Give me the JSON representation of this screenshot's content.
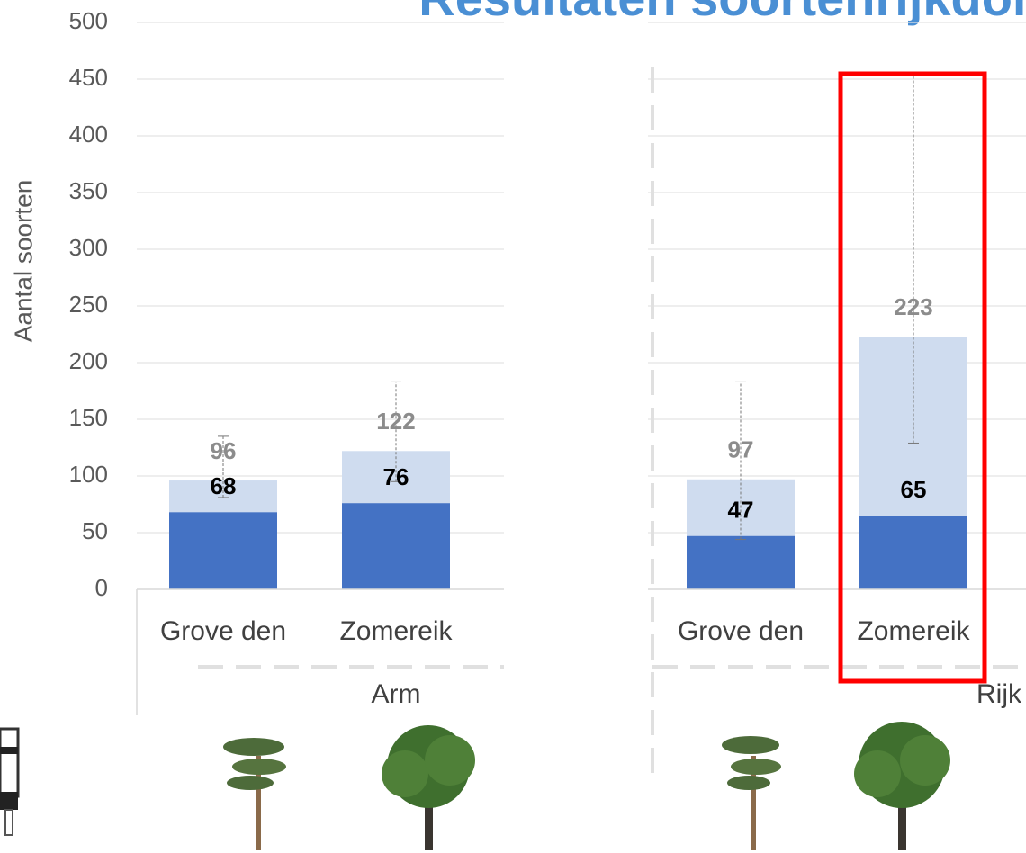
{
  "chart_data": {
    "type": "bar",
    "barmode": "overlay",
    "title": "Resultaten soortenrijkdom",
    "ylabel": "Aantal soorten",
    "categories": [
      "Grove den",
      "Zomereik",
      "Grove den",
      "Zomereik"
    ],
    "groups": [
      "Arm",
      "Rijk"
    ],
    "series": [
      {
        "color": "#cfdcef",
        "label_color": "#8c8c8c",
        "values": [
          96,
          122,
          97,
          223
        ]
      },
      {
        "color": "#4472c4",
        "label_color": "#000000",
        "values": [
          68,
          76,
          47,
          65
        ]
      }
    ],
    "error_range": [
      [
        81,
        135
      ],
      [
        95,
        183
      ],
      [
        44,
        183
      ],
      [
        129,
        455
      ]
    ],
    "ylim": [
      0,
      500
    ],
    "yticks": [
      0,
      50,
      100,
      150,
      200,
      250,
      300,
      350,
      400,
      450,
      500
    ],
    "grid": true
  }
}
